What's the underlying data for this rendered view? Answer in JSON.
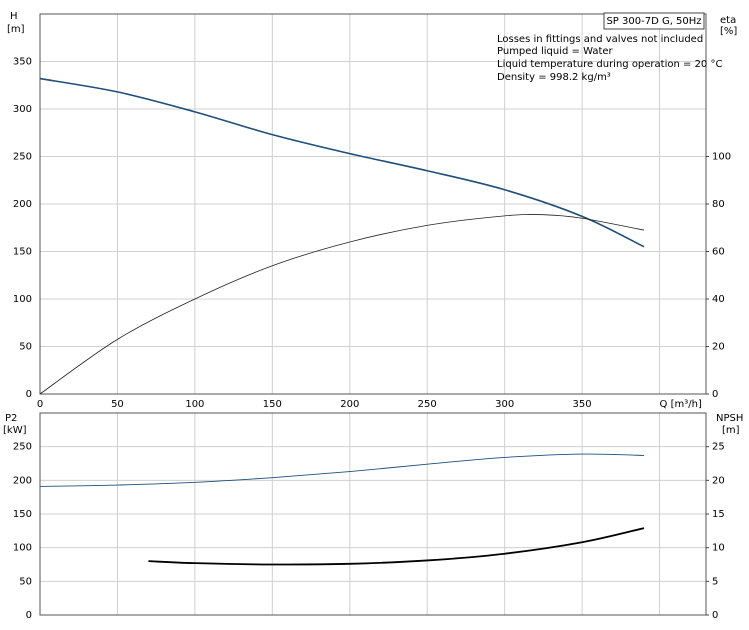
{
  "chart_data": [
    {
      "type": "line",
      "ylabel": [
        "H",
        "[m]"
      ],
      "y2label": [
        "eta",
        "[%]"
      ],
      "legend": "SP 300-7D G, 50Hz",
      "notes": [
        "Losses in fittings and valves not included",
        "Pumped liquid = Water",
        "Liquid temperature during operation = 20 °C",
        "Density = 998.2 kg/m³"
      ],
      "xlim": [
        0,
        430
      ],
      "xticks": [
        0,
        50,
        100,
        150,
        200,
        250,
        300,
        350,
        {
          "value": 400,
          "label": "Q [m³/h]"
        }
      ],
      "ylim": [
        0,
        400
      ],
      "yticks": [
        0,
        50,
        100,
        150,
        200,
        250,
        300,
        350
      ],
      "y2lim": [
        0,
        160
      ],
      "y2ticks": [
        0,
        20,
        40,
        60,
        80,
        100
      ],
      "grid": true,
      "series": [
        {
          "name": "H",
          "color": "#1f4e7a",
          "width": 1.6,
          "x": [
            0,
            50,
            100,
            150,
            200,
            250,
            300,
            350,
            390
          ],
          "values": [
            332,
            318,
            297,
            273,
            253,
            235,
            215,
            187,
            155
          ]
        },
        {
          "name": "eta",
          "color": "#222222",
          "width": 0.8,
          "axis": "y2",
          "x": [
            0,
            50,
            100,
            150,
            200,
            250,
            300,
            325,
            350,
            390
          ],
          "values": [
            0,
            23,
            40,
            54,
            64,
            71,
            75,
            75.5,
            74,
            69
          ]
        }
      ]
    },
    {
      "type": "line",
      "ylabel": [
        "P2",
        "[kW]"
      ],
      "y2label": [
        "NPSH",
        "[m]"
      ],
      "xlim": [
        0,
        430
      ],
      "ylim": [
        0,
        300
      ],
      "yticks": [
        0,
        50,
        100,
        150,
        200,
        250
      ],
      "y2lim": [
        0,
        30
      ],
      "y2ticks": [
        0,
        5,
        10,
        15,
        20,
        25
      ],
      "grid": true,
      "series": [
        {
          "name": "P2",
          "color": "#1f4e7a",
          "width": 0.9,
          "x": [
            0,
            50,
            100,
            150,
            200,
            250,
            300,
            350,
            390
          ],
          "values": [
            191,
            193,
            197,
            204,
            213,
            224,
            234,
            239,
            237
          ]
        },
        {
          "name": "NPSH",
          "color": "#000000",
          "width": 1.8,
          "axis": "y2",
          "x": [
            70,
            100,
            150,
            200,
            250,
            300,
            350,
            390
          ],
          "values": [
            8.0,
            7.7,
            7.5,
            7.6,
            8.1,
            9.1,
            10.8,
            12.9
          ]
        }
      ]
    }
  ]
}
